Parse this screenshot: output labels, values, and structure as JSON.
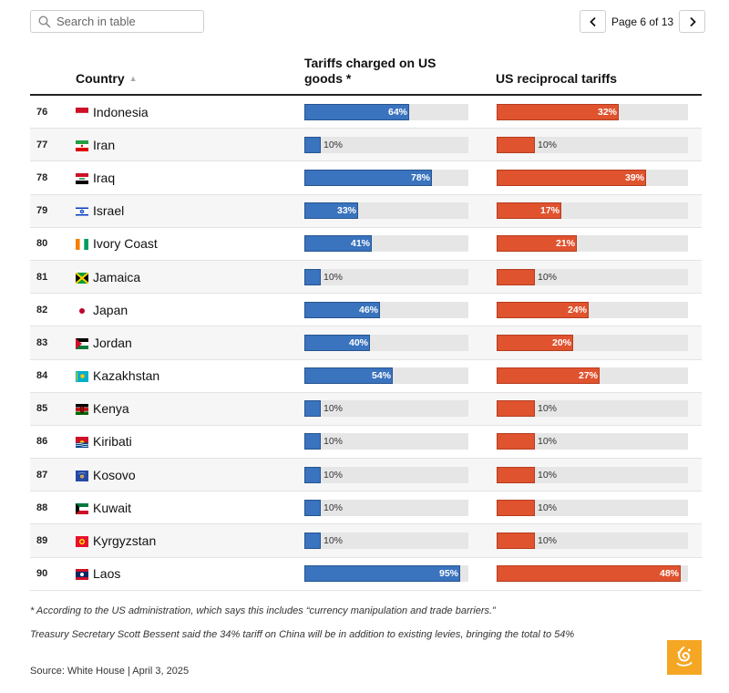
{
  "search": {
    "placeholder": "Search in table"
  },
  "pager": {
    "label": "Page 6 of 13"
  },
  "headers": {
    "country": "Country",
    "tariffs_charged": "Tariffs charged on US goods *",
    "reciprocal": "US reciprocal tariffs"
  },
  "colors": {
    "charged": "#3a73be",
    "reciprocal": "#e0532f",
    "track": "#e6e6e6"
  },
  "chart_data": {
    "type": "table",
    "columns": [
      "",
      "Country",
      "Tariffs charged on US goods *",
      "US reciprocal tariffs"
    ],
    "rows": [
      {
        "rank": "76",
        "country": "Indonesia",
        "charged": 64,
        "reciprocal": 32,
        "charged_label": "64%",
        "reciprocal_label": "32%",
        "flag_icon": "flag-indonesia-icon"
      },
      {
        "rank": "77",
        "country": "Iran",
        "charged": 10,
        "reciprocal": 10,
        "charged_label": "10%",
        "reciprocal_label": "10%",
        "flag_icon": "flag-iran-icon"
      },
      {
        "rank": "78",
        "country": "Iraq",
        "charged": 78,
        "reciprocal": 39,
        "charged_label": "78%",
        "reciprocal_label": "39%",
        "flag_icon": "flag-iraq-icon"
      },
      {
        "rank": "79",
        "country": "Israel",
        "charged": 33,
        "reciprocal": 17,
        "charged_label": "33%",
        "reciprocal_label": "17%",
        "flag_icon": "flag-israel-icon"
      },
      {
        "rank": "80",
        "country": "Ivory Coast",
        "charged": 41,
        "reciprocal": 21,
        "charged_label": "41%",
        "reciprocal_label": "21%",
        "flag_icon": "flag-ivory-coast-icon"
      },
      {
        "rank": "81",
        "country": "Jamaica",
        "charged": 10,
        "reciprocal": 10,
        "charged_label": "10%",
        "reciprocal_label": "10%",
        "flag_icon": "flag-jamaica-icon"
      },
      {
        "rank": "82",
        "country": "Japan",
        "charged": 46,
        "reciprocal": 24,
        "charged_label": "46%",
        "reciprocal_label": "24%",
        "flag_icon": "flag-japan-icon"
      },
      {
        "rank": "83",
        "country": "Jordan",
        "charged": 40,
        "reciprocal": 20,
        "charged_label": "40%",
        "reciprocal_label": "20%",
        "flag_icon": "flag-jordan-icon"
      },
      {
        "rank": "84",
        "country": "Kazakhstan",
        "charged": 54,
        "reciprocal": 27,
        "charged_label": "54%",
        "reciprocal_label": "27%",
        "flag_icon": "flag-kazakhstan-icon"
      },
      {
        "rank": "85",
        "country": "Kenya",
        "charged": 10,
        "reciprocal": 10,
        "charged_label": "10%",
        "reciprocal_label": "10%",
        "flag_icon": "flag-kenya-icon"
      },
      {
        "rank": "86",
        "country": "Kiribati",
        "charged": 10,
        "reciprocal": 10,
        "charged_label": "10%",
        "reciprocal_label": "10%",
        "flag_icon": "flag-kiribati-icon"
      },
      {
        "rank": "87",
        "country": "Kosovo",
        "charged": 10,
        "reciprocal": 10,
        "charged_label": "10%",
        "reciprocal_label": "10%",
        "flag_icon": "flag-kosovo-icon"
      },
      {
        "rank": "88",
        "country": "Kuwait",
        "charged": 10,
        "reciprocal": 10,
        "charged_label": "10%",
        "reciprocal_label": "10%",
        "flag_icon": "flag-kuwait-icon"
      },
      {
        "rank": "89",
        "country": "Kyrgyzstan",
        "charged": 10,
        "reciprocal": 10,
        "charged_label": "10%",
        "reciprocal_label": "10%",
        "flag_icon": "flag-kyrgyzstan-icon"
      },
      {
        "rank": "90",
        "country": "Laos",
        "charged": 95,
        "reciprocal": 48,
        "charged_label": "95%",
        "reciprocal_label": "48%",
        "flag_icon": "flag-laos-icon"
      }
    ],
    "charged_max": 100,
    "reciprocal_max": 50
  },
  "footnotes": {
    "note": "* According to the US administration, which says this includes “currency manipulation and trade barriers.”",
    "treasury": "Treasury Secretary Scott Bessent said the 34% tariff on China will be in addition to existing levies, bringing the total to 54%",
    "source": "Source: White House | April 3, 2025"
  },
  "logo": {
    "icon": "al-jazeera-logo-icon"
  }
}
